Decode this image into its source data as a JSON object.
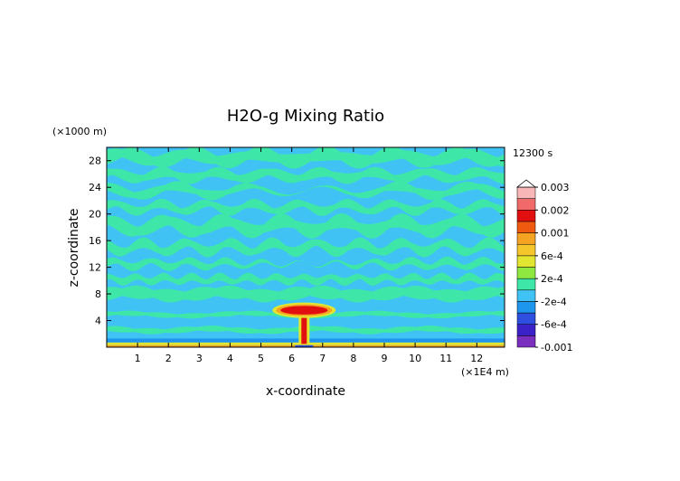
{
  "chart_data": {
    "type": "heatmap",
    "title": "H2O-g Mixing Ratio",
    "xlabel": "x-coordinate",
    "ylabel": "z-coordinate",
    "x_unit": "(×1E4 m)",
    "y_unit": "(×1000 m)",
    "time_label": "12300 s",
    "xlim": [
      0,
      12.9
    ],
    "ylim": [
      0,
      30
    ],
    "x_ticks": [
      "1",
      "2",
      "3",
      "4",
      "5",
      "6",
      "7",
      "8",
      "9",
      "10",
      "11",
      "12"
    ],
    "y_ticks": [
      "4",
      "8",
      "12",
      "16",
      "20",
      "24",
      "28"
    ],
    "colorbar": {
      "levels": [
        -0.001,
        -0.0008,
        -0.0006,
        -0.0004,
        -0.0002,
        0,
        0.0002,
        0.0004,
        0.0006,
        0.0008,
        0.001,
        0.0015,
        0.002,
        0.0025,
        0.003
      ],
      "labels": [
        "0.003",
        "0.002",
        "0.001",
        "6e-4",
        "2e-4",
        "-2e-4",
        "-6e-4",
        "-0.001"
      ],
      "label_values": [
        0.003,
        0.002,
        0.001,
        0.0006,
        0.0002,
        -0.0002,
        -0.0006,
        -0.001
      ],
      "colors": [
        "#7b2fbf",
        "#3a22c8",
        "#2e4fe0",
        "#1f96ee",
        "#40c2f5",
        "#3ee7a8",
        "#8ee840",
        "#e3e630",
        "#f5c62b",
        "#f5a323",
        "#ef5a10",
        "#e20f10",
        "#f16a6a",
        "#f8b6b6"
      ],
      "extend_max": true
    },
    "features": [
      {
        "name": "plume",
        "x_center": 6.4,
        "z_top": 6.5,
        "value": 0.0012
      },
      {
        "name": "surface-layer",
        "z_range": [
          0,
          0.8
        ],
        "value": 0.0008
      }
    ]
  }
}
